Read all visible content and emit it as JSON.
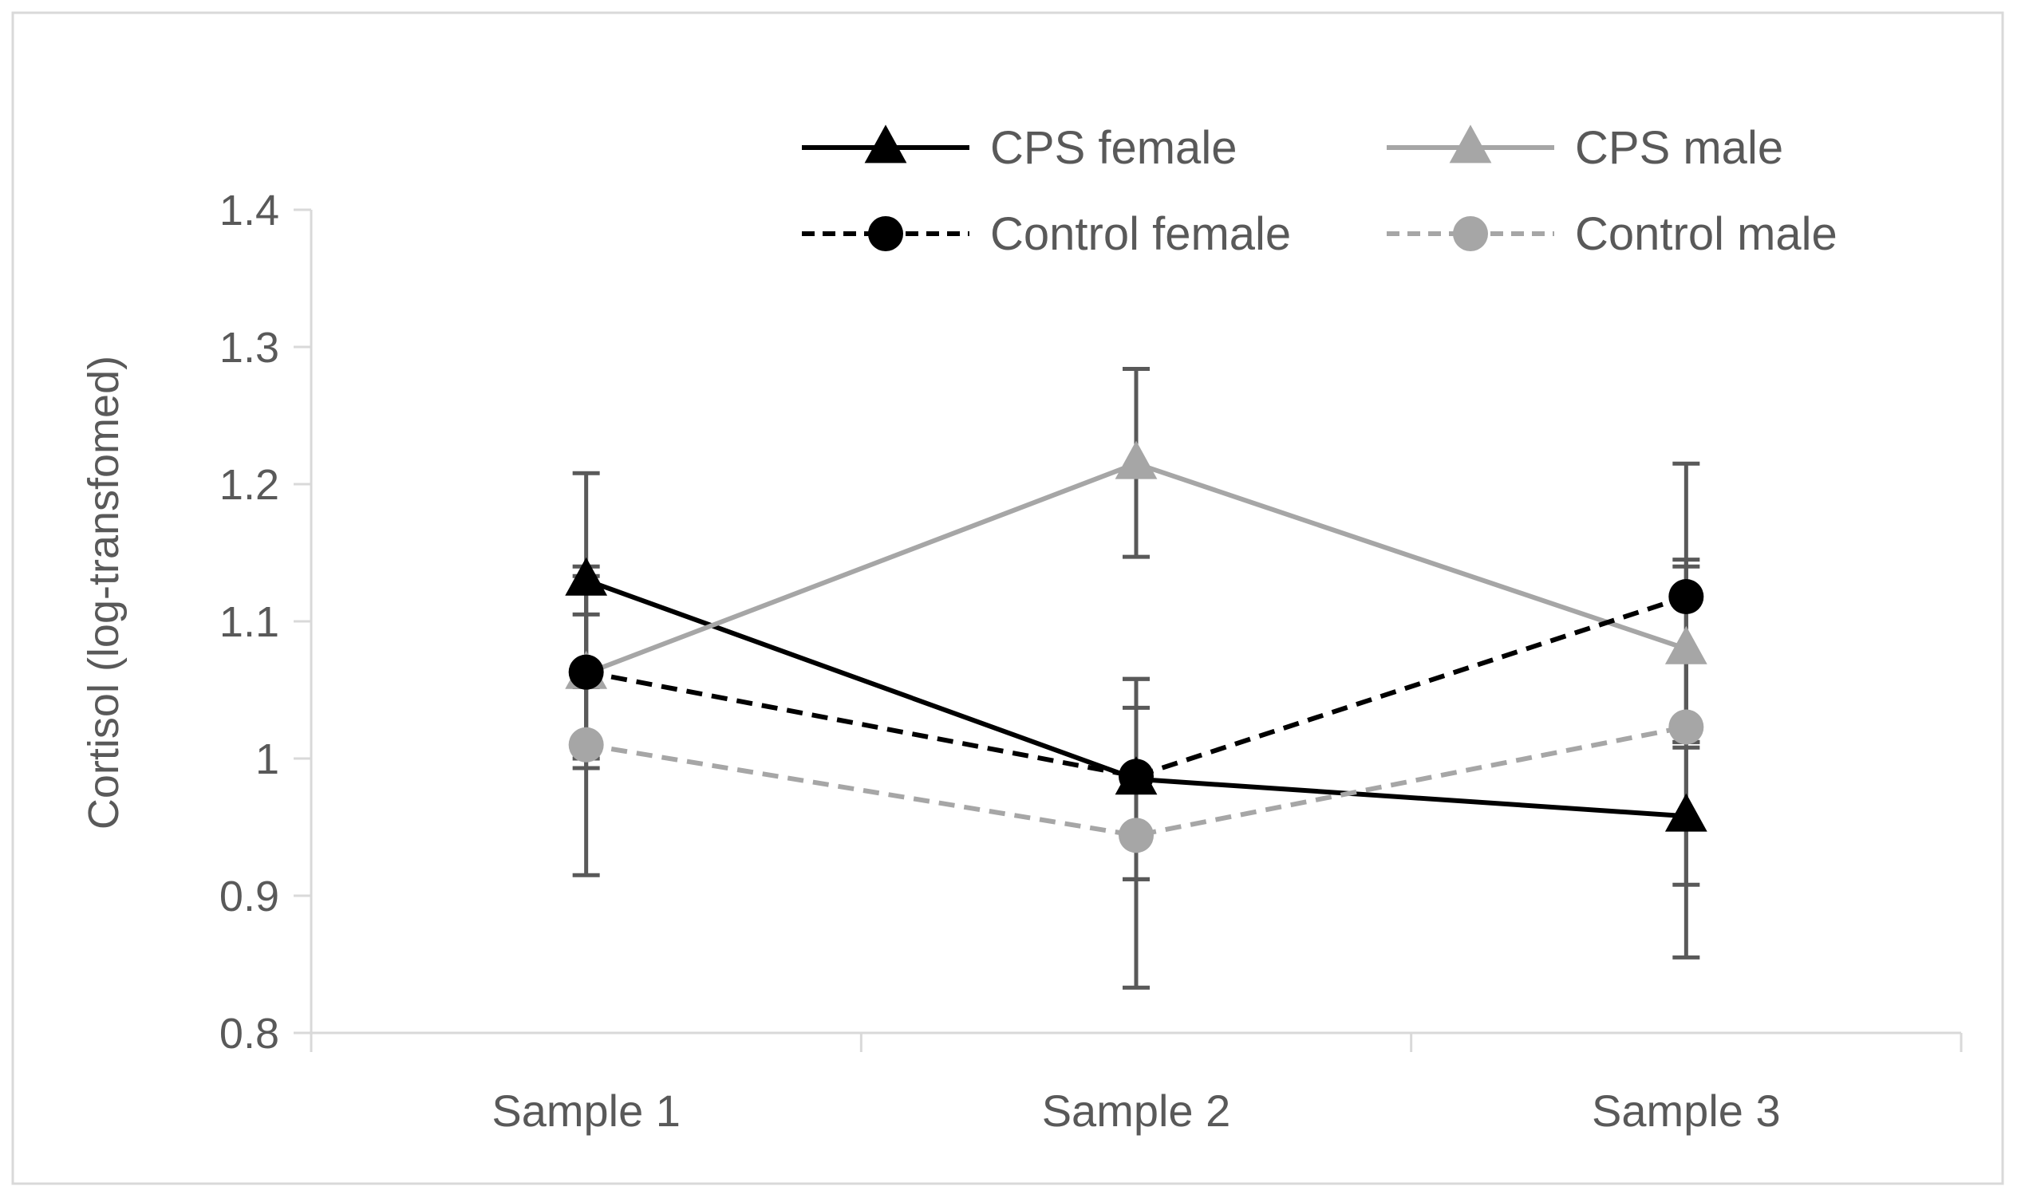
{
  "chart_data": {
    "type": "line",
    "title": "",
    "xlabel": "",
    "ylabel": "Cortisol (log-transfomed)",
    "categories": [
      "Sample 1",
      "Sample 2",
      "Sample 3"
    ],
    "ylim": [
      0.8,
      1.4
    ],
    "yticks": [
      "0.8",
      "0.9",
      "1",
      "1.1",
      "1.2",
      "1.3",
      "1.4"
    ],
    "grid": false,
    "legend_position": "top-right",
    "series": [
      {
        "name": "CPS female",
        "values": [
          1.13,
          0.985,
          0.958
        ],
        "error_low": [
          1.052,
          0.912,
          0.908
        ],
        "error_high": [
          1.208,
          1.058,
          1.008
        ],
        "color": "#000000",
        "dash": "solid",
        "marker": "triangle"
      },
      {
        "name": "CPS male",
        "values": [
          1.062,
          1.215,
          1.08
        ],
        "error_low": [
          1.0,
          1.147,
          1.012
        ],
        "error_high": [
          1.14,
          1.284,
          1.145
        ],
        "color": "#a6a6a6",
        "dash": "solid",
        "marker": "triangle"
      },
      {
        "name": "Control female",
        "values": [
          1.063,
          0.987,
          1.118
        ],
        "error_low": [
          0.993,
          0.912,
          1.012
        ],
        "error_high": [
          1.133,
          1.058,
          1.215
        ],
        "color": "#000000",
        "dash": "dashed",
        "marker": "circle"
      },
      {
        "name": "Control male",
        "values": [
          1.01,
          0.944,
          1.023
        ],
        "error_low": [
          0.915,
          0.833,
          0.855
        ],
        "error_high": [
          1.105,
          1.037,
          1.14
        ],
        "color": "#a6a6a6",
        "dash": "dashed",
        "marker": "circle"
      }
    ],
    "error_bar_color": "#595959",
    "axis_color": "#d9d9d9",
    "text_color": "#595959"
  }
}
